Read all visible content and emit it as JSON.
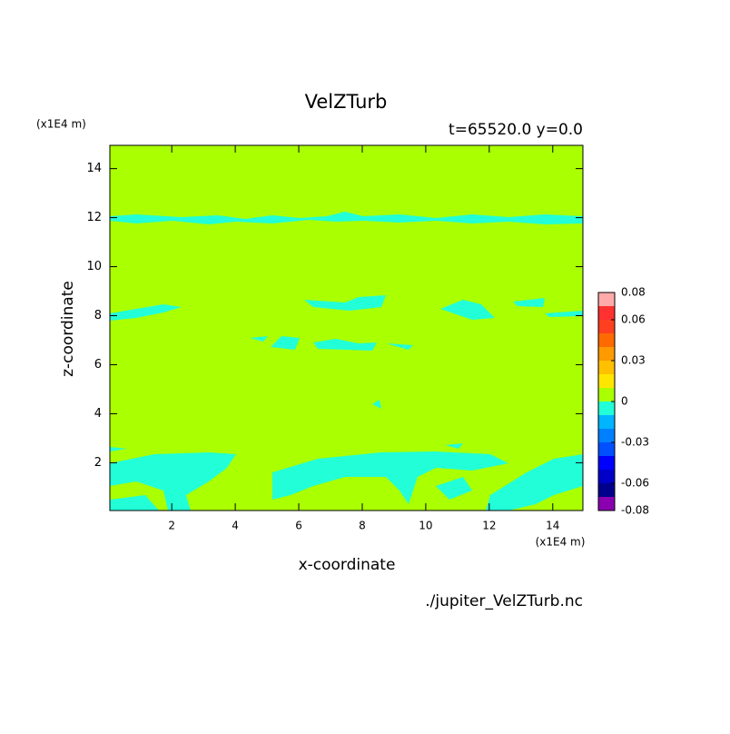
{
  "chart_data": {
    "type": "contour",
    "title": "VelZTurb",
    "subtitle": "t=65520.0 y=0.0",
    "x_label": "x-coordinate",
    "y_label": "z-coordinate",
    "x_unit": "(x1E4 m)",
    "y_unit": "(x1E4 m)",
    "source": "./jupiter_VelZTurb.nc",
    "xlim": [
      0.05,
      14.95
    ],
    "ylim": [
      0.05,
      14.95
    ],
    "xticks": [
      2,
      4,
      6,
      8,
      10,
      12,
      14
    ],
    "yticks": [
      2,
      4,
      6,
      8,
      10,
      12,
      14
    ],
    "levels": [
      -0.08,
      -0.07,
      -0.06,
      -0.05,
      -0.04,
      -0.03,
      -0.02,
      -0.01,
      0,
      0.01,
      0.02,
      0.03,
      0.04,
      0.05,
      0.06,
      0.07,
      0.08
    ],
    "colors": [
      "#8a00b0",
      "#00008c",
      "#0000c8",
      "#0000ff",
      "#0050ff",
      "#0080ff",
      "#00b4ff",
      "#22ffd8",
      "#aaff00",
      "#ffe600",
      "#ffc000",
      "#ff9a00",
      "#ff6a00",
      "#ff4020",
      "#ff3030",
      "#ffaaaa"
    ],
    "colorbar_ticks": [
      0.08,
      0.06,
      0.03,
      0,
      -0.03,
      -0.06,
      -0.08
    ]
  }
}
